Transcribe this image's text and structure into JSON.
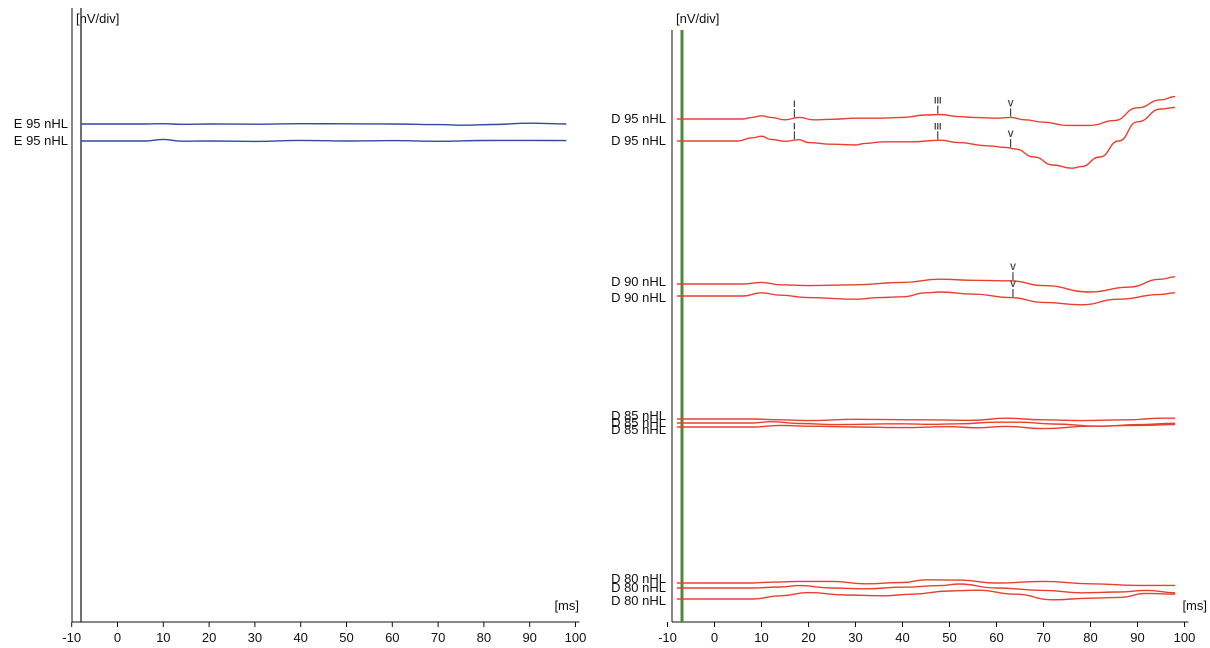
{
  "chart_data": [
    {
      "type": "line",
      "ear": "E",
      "y_unit_label": "[nV/div]",
      "x_unit_label": "[ms]",
      "xlim": [
        -10,
        100
      ],
      "x_ticks": [
        "-10",
        "0",
        "10",
        "20",
        "30",
        "40",
        "50",
        "60",
        "70",
        "80",
        "90",
        "100"
      ],
      "color": "#2f4aa0",
      "marker_line_color": "#111111",
      "groups": [
        {
          "level": "95 nHL",
          "traces": [
            {
              "label": "E 95 nHL",
              "x": [
                -8,
                6,
                10,
                14,
                20,
                30,
                40,
                50,
                60,
                70,
                76,
                82,
                90,
                98
              ],
              "y": [
                0,
                0,
                -0.3,
                0.3,
                0,
                0.2,
                -0.3,
                -0.2,
                0,
                0.6,
                1.2,
                0.5,
                -0.8,
                0
              ],
              "peaks": []
            },
            {
              "label": "E 95 nHL",
              "x": [
                -8,
                6,
                10,
                14,
                20,
                30,
                40,
                50,
                60,
                70,
                80,
                90,
                98
              ],
              "y": [
                0,
                0,
                -1.6,
                0.2,
                0,
                0.4,
                -0.6,
                0,
                -0.4,
                0.3,
                -0.5,
                -0.6,
                -0.4
              ],
              "peaks": []
            }
          ]
        }
      ]
    },
    {
      "type": "line",
      "ear": "D",
      "y_unit_label": "[nV/div]",
      "x_unit_label": "[ms]",
      "xlim": [
        -10,
        100
      ],
      "x_ticks": [
        "-10",
        "0",
        "10",
        "20",
        "30",
        "40",
        "50",
        "60",
        "70",
        "80",
        "90",
        "100"
      ],
      "color": "#e8402e",
      "marker_line_color": "#4e8a3c",
      "groups": [
        {
          "level": "95 nHL",
          "traces": [
            {
              "label": "D 95 nHL",
              "x": [
                -8,
                6,
                8,
                10,
                12,
                15,
                18,
                21,
                25,
                30,
                35,
                40,
                45,
                48,
                52,
                55,
                60,
                63,
                66,
                70,
                75,
                80,
                85,
                90,
                95,
                98
              ],
              "y": [
                0,
                0,
                -1,
                -2,
                -1,
                0.5,
                -1,
                0.5,
                0.2,
                -0.5,
                -0.5,
                -1,
                -2.5,
                -2.8,
                -1.5,
                -1,
                -0.5,
                -1,
                0.5,
                2,
                4,
                4,
                1,
                -7,
                -12,
                -14
              ],
              "peaks": [
                {
                  "label": "I",
                  "x": 17
                },
                {
                  "label": "III",
                  "x": 47.5
                },
                {
                  "label": "V",
                  "x": 63
                }
              ]
            },
            {
              "label": "D 95 nHL",
              "x": [
                -8,
                5,
                8,
                10,
                12,
                15,
                18,
                20,
                25,
                30,
                32,
                36,
                42,
                48,
                52,
                58,
                62,
                64,
                68,
                72,
                76,
                78,
                82,
                86,
                90,
                95,
                98
              ],
              "y": [
                0,
                0,
                -2,
                -3,
                -1,
                0.2,
                -0.8,
                1,
                2,
                2.5,
                1.5,
                0.5,
                0.5,
                -0.5,
                1,
                3,
                4,
                5,
                10,
                15,
                17,
                16,
                10,
                0,
                -12,
                -20,
                -21
              ],
              "peaks": [
                {
                  "label": "I",
                  "x": 17
                },
                {
                  "label": "III",
                  "x": 47.5
                },
                {
                  "label": "V",
                  "x": 63
                }
              ]
            }
          ]
        },
        {
          "level": "90 nHL",
          "traces": [
            {
              "label": "D 90 nHL",
              "x": [
                -8,
                6,
                10,
                14,
                20,
                30,
                40,
                48,
                55,
                63,
                70,
                80,
                88,
                95,
                98
              ],
              "y": [
                0,
                0,
                -1,
                0.5,
                1,
                0.5,
                -1,
                -3,
                -2.3,
                -2,
                1,
                5,
                2,
                -3,
                -4.5
              ],
              "peaks": [
                {
                  "label": "V",
                  "x": 63.5
                }
              ]
            },
            {
              "label": "D 90 nHL",
              "x": [
                -8,
                6,
                10,
                14,
                20,
                30,
                35,
                40,
                45,
                48,
                55,
                63,
                70,
                78,
                86,
                95,
                98
              ],
              "y": [
                0,
                0,
                -2,
                -0.5,
                1,
                2,
                1,
                0.5,
                -2,
                -2.5,
                -1.2,
                1,
                4,
                5.5,
                2,
                -1,
                -2
              ],
              "peaks": [
                {
                  "label": "V",
                  "x": 63.5
                }
              ]
            }
          ]
        },
        {
          "level": "85 nHL",
          "traces": [
            {
              "label": "D 85 nHL",
              "x": [
                -8,
                8,
                14,
                20,
                30,
                45,
                55,
                62,
                70,
                78,
                88,
                95,
                98
              ],
              "y": [
                0,
                0,
                0.5,
                1,
                0.2,
                0.5,
                0.8,
                -0.5,
                0.5,
                1,
                0.5,
                -0.5,
                -0.5
              ],
              "peaks": []
            },
            {
              "label": "D 85 nHL",
              "x": [
                -8,
                8,
                12,
                18,
                26,
                40,
                46,
                52,
                60,
                65,
                72,
                82,
                90,
                98
              ],
              "y": [
                0,
                0,
                -0.8,
                0.3,
                1,
                0.5,
                0.8,
                0.5,
                -0.5,
                -0.5,
                0.6,
                2,
                1,
                0.2
              ],
              "peaks": []
            },
            {
              "label": "D 85 nHL",
              "x": [
                -8,
                8,
                14,
                20,
                30,
                40,
                50,
                56,
                62,
                70,
                80,
                90,
                98
              ],
              "y": [
                0,
                0,
                -1,
                -0.5,
                0,
                0.4,
                -0.2,
                0.5,
                -0.4,
                1,
                -0.5,
                -1,
                -1.5
              ],
              "peaks": []
            }
          ]
        },
        {
          "level": "80 nHL",
          "traces": [
            {
              "label": "D 80 nHL",
              "x": [
                -8,
                8,
                12,
                18,
                25,
                32,
                40,
                45,
                52,
                60,
                70,
                80,
                90,
                98
              ],
              "y": [
                0,
                0,
                -0.5,
                -1,
                -1,
                0.5,
                -0.3,
                -2,
                -1.8,
                0,
                -1,
                0.5,
                1.5,
                1.5
              ],
              "peaks": []
            },
            {
              "label": "D 80 nHL",
              "x": [
                -8,
                8,
                14,
                18,
                25,
                32,
                40,
                48,
                52,
                60,
                70,
                78,
                86,
                92,
                98
              ],
              "y": [
                0,
                0,
                -0.6,
                -1.5,
                0,
                0.5,
                -0.5,
                -1.5,
                -2.5,
                0,
                1.5,
                3,
                2.5,
                1.5,
                3
              ],
              "peaks": []
            },
            {
              "label": "D 80 nHL",
              "x": [
                -8,
                8,
                14,
                20,
                28,
                36,
                42,
                50,
                56,
                64,
                72,
                80,
                86,
                92,
                98
              ],
              "y": [
                0,
                0,
                -2,
                -4,
                -2.5,
                -2,
                -3,
                -5,
                -5.5,
                -3,
                0.5,
                -0.5,
                -1,
                -3.5,
                -3
              ],
              "peaks": []
            }
          ]
        }
      ]
    }
  ]
}
